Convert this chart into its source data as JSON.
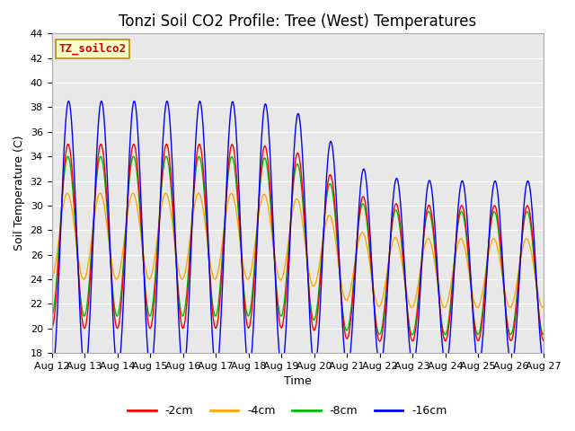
{
  "title": "Tonzi Soil CO2 Profile: Tree (West) Temperatures",
  "xlabel": "Time",
  "ylabel": "Soil Temperature (C)",
  "watermark": "TZ_soilco2",
  "ylim": [
    18,
    44
  ],
  "line_colors": [
    "#ff0000",
    "#ffa500",
    "#00bb00",
    "#0000ff"
  ],
  "line_labels": [
    "-2cm",
    "-4cm",
    "-8cm",
    "-16cm"
  ],
  "bg_color": "#e8e8e8",
  "fig_bg": "#ffffff",
  "x_tick_labels": [
    "Aug 12",
    "Aug 13",
    "Aug 14",
    "Aug 15",
    "Aug 16",
    "Aug 17",
    "Aug 18",
    "Aug 19",
    "Aug 20",
    "Aug 21",
    "Aug 22",
    "Aug 23",
    "Aug 24",
    "Aug 25",
    "Aug 26",
    "Aug 27"
  ],
  "title_fontsize": 12,
  "axis_fontsize": 8,
  "legend_fontsize": 9
}
